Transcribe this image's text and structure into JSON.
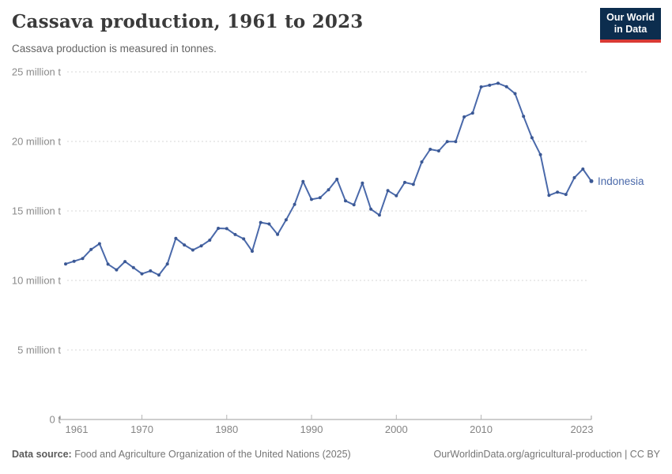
{
  "header": {
    "title": "Cassava production, 1961 to 2023",
    "subtitle": "Cassava production is measured in tonnes.",
    "logo": {
      "line1": "Our World",
      "line2": "in Data",
      "bg_color": "#0c2d4e",
      "accent_color": "#d93a34"
    }
  },
  "chart_data": {
    "type": "line",
    "title": "Cassava production, 1961 to 2023",
    "unit": "tonnes",
    "values_unit": "million tonnes",
    "grid": "horizontal dashed",
    "legend_position": "end-of-line label",
    "ylim_million": [
      0,
      25
    ],
    "xlim": [
      1961,
      2023
    ],
    "x_ticks": [
      1961,
      1970,
      1980,
      1990,
      2000,
      2010,
      2023
    ],
    "y_ticks": [
      {
        "value_million": 0,
        "label": "0 t"
      },
      {
        "value_million": 5,
        "label": "5 million t"
      },
      {
        "value_million": 10,
        "label": "10 million t"
      },
      {
        "value_million": 15,
        "label": "15 million t"
      },
      {
        "value_million": 20,
        "label": "20 million t"
      },
      {
        "value_million": 25,
        "label": "25 million t"
      }
    ],
    "series": [
      {
        "name": "Indonesia",
        "color": "#4a69aa",
        "marker_color": "#3b5894",
        "x": [
          1961,
          1962,
          1963,
          1964,
          1965,
          1966,
          1967,
          1968,
          1969,
          1970,
          1971,
          1972,
          1973,
          1974,
          1975,
          1976,
          1977,
          1978,
          1979,
          1980,
          1981,
          1982,
          1983,
          1984,
          1985,
          1986,
          1987,
          1988,
          1989,
          1990,
          1991,
          1992,
          1993,
          1994,
          1995,
          1996,
          1997,
          1998,
          1999,
          2000,
          2001,
          2002,
          2003,
          2004,
          2005,
          2006,
          2007,
          2008,
          2009,
          2010,
          2011,
          2012,
          2013,
          2014,
          2015,
          2016,
          2017,
          2018,
          2019,
          2020,
          2021,
          2022,
          2023
        ],
        "values_million": [
          11.19,
          11.38,
          11.58,
          12.23,
          12.64,
          11.17,
          10.76,
          11.36,
          10.92,
          10.48,
          10.69,
          10.39,
          11.19,
          13.03,
          12.55,
          12.19,
          12.49,
          12.9,
          13.75,
          13.73,
          13.3,
          12.99,
          12.1,
          14.17,
          14.06,
          13.31,
          14.36,
          15.47,
          17.12,
          15.83,
          15.95,
          16.52,
          17.28,
          15.73,
          15.44,
          17.0,
          15.13,
          14.7,
          16.46,
          16.09,
          17.05,
          16.91,
          18.52,
          19.43,
          19.32,
          19.99,
          19.99,
          21.76,
          22.04,
          23.92,
          24.04,
          24.18,
          23.94,
          23.44,
          21.8,
          20.26,
          19.05,
          16.12,
          16.35,
          16.19,
          17.39,
          18.01,
          17.14
        ]
      }
    ]
  },
  "footer": {
    "source_label": "Data source:",
    "source_text": " Food and Agriculture Organization of the United Nations (2025)",
    "credit": "OurWorldinData.org/agricultural-production | CC BY"
  }
}
